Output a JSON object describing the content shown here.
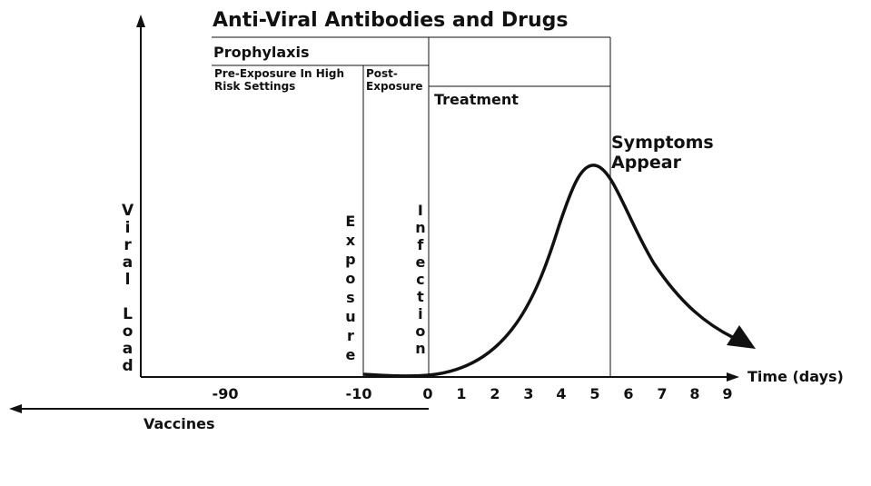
{
  "title": "Anti-Viral Antibodies and Drugs",
  "prophylaxis": {
    "label": "Prophylaxis",
    "pre_exposure": "Pre-Exposure In High Risk Settings",
    "post_exposure": "Post-Exposure"
  },
  "treatment": "Treatment",
  "symptoms": "Symptoms Appear",
  "y_axis": {
    "label": "Viral Load"
  },
  "x_axis": {
    "label": "Time (days)",
    "ticks": [
      "-90",
      "-10",
      "0",
      "1",
      "2",
      "3",
      "4",
      "5",
      "6",
      "7",
      "8",
      "9"
    ]
  },
  "markers": {
    "exposure": "Exposure",
    "infection": "Infection"
  },
  "vaccines": "Vaccines"
}
